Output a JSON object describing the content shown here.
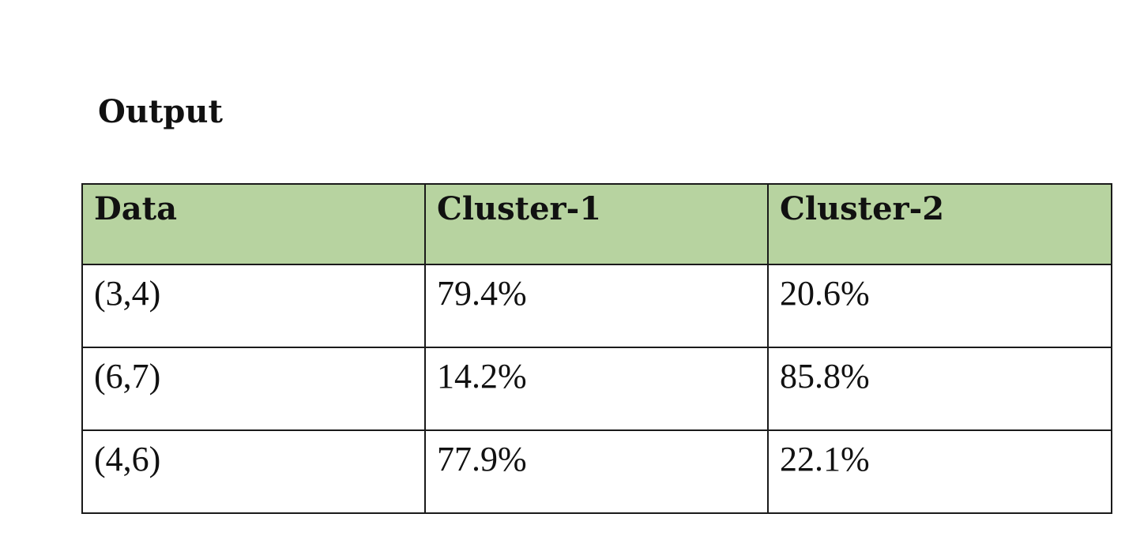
{
  "heading": "Output",
  "table": {
    "headers": [
      "Data",
      "Cluster-1",
      "Cluster-2"
    ],
    "rows": [
      [
        "(3,4)",
        "79.4%",
        "20.6%"
      ],
      [
        "(6,7)",
        "14.2%",
        "85.8%"
      ],
      [
        "(4,6)",
        "77.9%",
        "22.1%"
      ]
    ],
    "header_background": "#b7d3a0"
  }
}
